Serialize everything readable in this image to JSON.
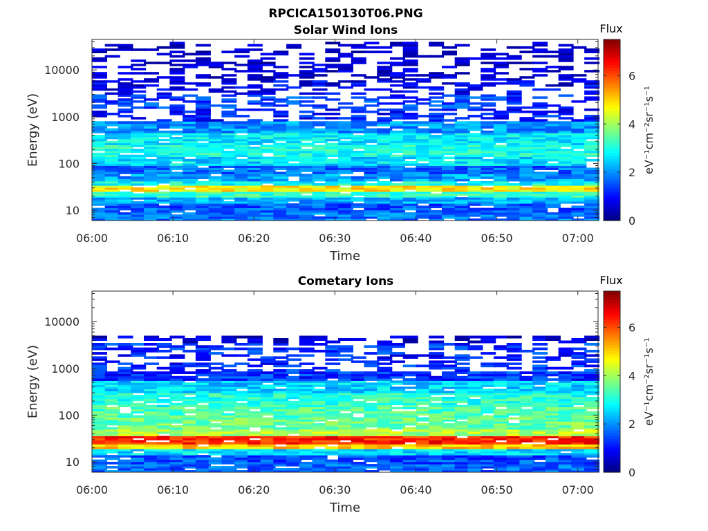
{
  "figure_title": "RPCICA150130T06.PNG",
  "chart_data": [
    {
      "type": "heatmap",
      "title": "Solar Wind Ions",
      "xlabel": "Time",
      "ylabel": "Energy (eV)",
      "yscale": "log",
      "ylim": [
        6,
        45000
      ],
      "xlim_minutes": [
        0,
        62.5
      ],
      "x_ticks": [
        "06:00",
        "06:10",
        "06:20",
        "06:30",
        "06:40",
        "06:50",
        "07:00"
      ],
      "y_ticks": [
        "10",
        "100",
        "1000",
        "10000"
      ],
      "colorbar": {
        "label_top": "Flux",
        "label": "eV⁻¹cm⁻²sr⁻¹s⁻¹",
        "ticks": [
          "0",
          "2",
          "4",
          "6"
        ],
        "range": [
          0,
          7.5
        ],
        "colormap": "jet"
      },
      "scan_times_minutes": [
        0,
        1.6,
        3.2,
        4.8,
        6.4,
        8.0,
        9.6,
        11.2,
        12.8,
        14.4,
        16.0,
        17.6,
        19.2,
        20.8,
        22.4,
        24.0,
        25.6,
        27.2,
        28.8,
        30.4,
        32.0,
        33.6,
        35.2,
        36.8,
        38.4,
        40.0,
        41.6,
        43.2,
        44.8,
        46.4,
        48.0,
        49.6,
        51.2,
        52.8,
        54.4,
        56.0,
        57.6,
        59.2,
        60.8
      ],
      "profile": [
        {
          "e_min": 6,
          "e_max": 9,
          "flux": 1.8
        },
        {
          "e_min": 9,
          "e_max": 14,
          "flux": 1.6
        },
        {
          "e_min": 14,
          "e_max": 19,
          "flux": 2.2
        },
        {
          "e_min": 19,
          "e_max": 25,
          "flux": 3.2
        },
        {
          "e_min": 25,
          "e_max": 34,
          "flux": 4.8
        },
        {
          "e_min": 34,
          "e_max": 42,
          "flux": 2.9
        },
        {
          "e_min": 42,
          "e_max": 60,
          "flux": 2.1
        },
        {
          "e_min": 60,
          "e_max": 90,
          "flux": 1.7
        },
        {
          "e_min": 90,
          "e_max": 140,
          "flux": 2.6
        },
        {
          "e_min": 140,
          "e_max": 250,
          "flux": 3.0
        },
        {
          "e_min": 250,
          "e_max": 450,
          "flux": 2.7
        },
        {
          "e_min": 450,
          "e_max": 800,
          "flux": 2.0
        },
        {
          "e_min": 800,
          "e_max": 1500,
          "flux": 1.1
        },
        {
          "e_min": 1500,
          "e_max": 3000,
          "flux": 1.4
        },
        {
          "e_min": 3000,
          "e_max": 6000,
          "flux": 0.8
        },
        {
          "e_min": 6000,
          "e_max": 15000,
          "flux": 0.5
        },
        {
          "e_min": 15000,
          "e_max": 40000,
          "flux": 0.35
        }
      ]
    },
    {
      "type": "heatmap",
      "title": "Cometary Ions",
      "xlabel": "Time",
      "ylabel": "Energy (eV)",
      "yscale": "log",
      "ylim": [
        6,
        45000
      ],
      "xlim_minutes": [
        0,
        62.5
      ],
      "x_ticks": [
        "06:00",
        "06:10",
        "06:20",
        "06:30",
        "06:40",
        "06:50",
        "07:00"
      ],
      "y_ticks": [
        "10",
        "100",
        "1000",
        "10000"
      ],
      "colorbar": {
        "label_top": "Flux",
        "label": "eV⁻¹cm⁻²sr⁻¹s⁻¹",
        "ticks": [
          "0",
          "2",
          "4",
          "6"
        ],
        "range": [
          0,
          7.5
        ],
        "colormap": "jet"
      },
      "scan_times_minutes": [
        0,
        1.6,
        3.2,
        4.8,
        6.4,
        8.0,
        9.6,
        11.2,
        12.8,
        14.4,
        16.0,
        17.6,
        19.2,
        20.8,
        22.4,
        24.0,
        25.6,
        27.2,
        28.8,
        30.4,
        32.0,
        33.6,
        35.2,
        36.8,
        38.4,
        40.0,
        41.6,
        43.2,
        44.8,
        46.4,
        48.0,
        49.6,
        51.2,
        52.8,
        54.4,
        56.0,
        57.6,
        59.2,
        60.8
      ],
      "profile": [
        {
          "e_min": 6,
          "e_max": 9,
          "flux": 1.7
        },
        {
          "e_min": 9,
          "e_max": 14,
          "flux": 1.5
        },
        {
          "e_min": 14,
          "e_max": 19,
          "flux": 2.6
        },
        {
          "e_min": 19,
          "e_max": 24,
          "flux": 5.0
        },
        {
          "e_min": 24,
          "e_max": 36,
          "flux": 6.3
        },
        {
          "e_min": 36,
          "e_max": 50,
          "flux": 4.1
        },
        {
          "e_min": 50,
          "e_max": 90,
          "flux": 3.6
        },
        {
          "e_min": 90,
          "e_max": 150,
          "flux": 3.4
        },
        {
          "e_min": 150,
          "e_max": 300,
          "flux": 3.1
        },
        {
          "e_min": 300,
          "e_max": 550,
          "flux": 2.5
        },
        {
          "e_min": 550,
          "e_max": 1200,
          "flux": 1.3
        },
        {
          "e_min": 1200,
          "e_max": 2000,
          "flux": 1.1
        },
        {
          "e_min": 2000,
          "e_max": 3500,
          "flux": 1.3
        },
        {
          "e_min": 3500,
          "e_max": 5000,
          "flux": 0.6
        }
      ]
    }
  ]
}
